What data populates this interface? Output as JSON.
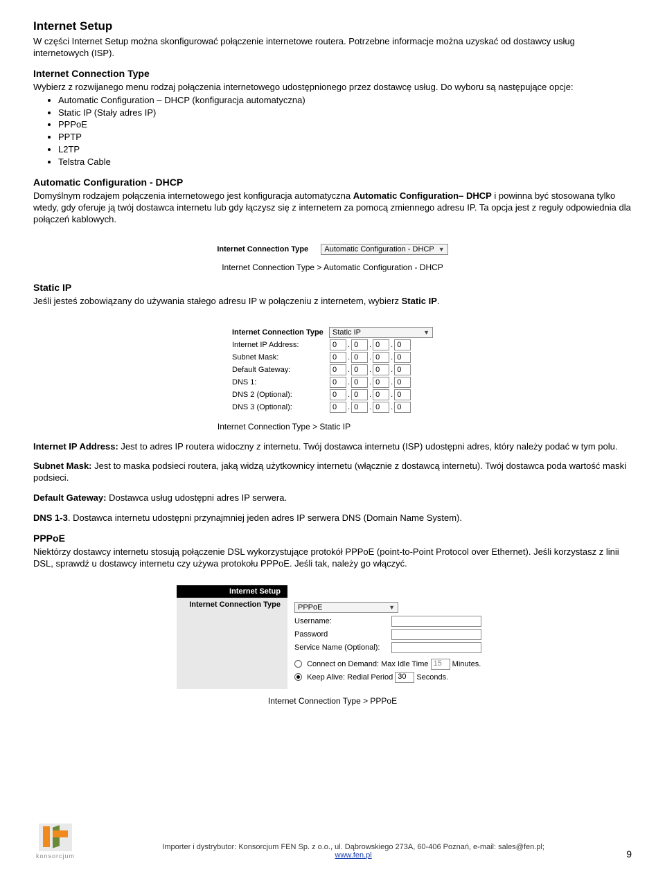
{
  "title": "Internet Setup",
  "intro": "W części Internet Setup można skonfigurować połączenie internetowe routera. Potrzebne informacje można uzyskać od dostawcy usług internetowych (ISP).",
  "ict_heading": "Internet Connection Type",
  "ict_intro": "Wybierz z rozwijanego menu rodzaj połączenia internetowego udostępnionego przez dostawcę usług. Do wyboru są następujące opcje:",
  "options": [
    "Automatic Configuration – DHCP (konfiguracja automatyczna)",
    "Static IP (Stały adres IP)",
    "PPPoE",
    "PPTP",
    "L2TP",
    "Telstra Cable"
  ],
  "auto_heading": "Automatic Configuration - DHCP",
  "auto_body_a": "Domyślnym rodzajem połączenia internetowego jest konfiguracja automatyczna ",
  "auto_body_b": "Automatic Configuration– DHCP",
  "auto_body_c": " i powinna być stosowana tylko wtedy, gdy oferuje ją twój dostawca internetu lub gdy łączysz się z internetem za pomocą zmiennego adresu IP. Ta opcja jest z reguły odpowiednia dla połączeń kablowych.",
  "fig1": {
    "row_label": "Internet Connection Type",
    "select_value": "Automatic Configuration - DHCP",
    "caption": "Internet Connection Type > Automatic Configuration - DHCP"
  },
  "static_heading": "Static IP",
  "static_body_a": "Jeśli jesteś zobowiązany do używania stałego adresu IP w połączeniu z internetem, wybierz ",
  "static_body_b": "Static IP",
  "static_body_c": ".",
  "fig2": {
    "row_label": "Internet Connection Type",
    "select_value": "Static IP",
    "fields": [
      "Internet IP Address:",
      "Subnet Mask:",
      "Default Gateway:",
      "DNS 1:",
      "DNS 2 (Optional):",
      "DNS 3 (Optional):"
    ],
    "octet": "0",
    "caption": "Internet Connection Type > Static IP"
  },
  "ipaddr_label": "Internet IP Address:",
  "ipaddr_text": " Jest to adres IP routera widoczny z internetu. Twój dostawca internetu (ISP) udostępni adres, który należy podać w tym polu.",
  "subnet_label": "Subnet Mask:",
  "subnet_text": " Jest to maska podsieci routera, jaką widzą użytkownicy internetu (włącznie z dostawcą internetu). Twój dostawca poda wartość maski podsieci.",
  "gateway_label": "Default Gateway:",
  "gateway_text": " Dostawca usług udostępni adres IP serwera.",
  "dns_label": "DNS 1-3",
  "dns_text": ". Dostawca internetu udostępni przynajmniej jeden adres IP serwera DNS (Domain Name System).",
  "pppoe_heading": "PPPoE",
  "pppoe_body": "Niektórzy dostawcy internetu stosują połączenie DSL wykorzystujące protokół PPPoE (point-to-Point Protocol over Ethernet). Jeśli korzystasz z linii DSL, sprawdź u dostawcy internetu czy używa protokołu PPPoE. Jeśli tak, należy go włączyć.",
  "fig3": {
    "panel_title": "Internet Setup",
    "side_label": "Internet Connection Type",
    "select_value": "PPPoE",
    "username_label": "Username:",
    "password_label": "Password",
    "service_label": "Service Name (Optional):",
    "cod_label": "Connect on Demand: Max Idle Time",
    "cod_value": "15",
    "cod_unit": "Minutes.",
    "ka_label": "Keep Alive: Redial Period",
    "ka_value": "30",
    "ka_unit": "Seconds.",
    "caption": "Internet Connection Type > PPPoE"
  },
  "footer": {
    "text_a": "Importer i dystrybutor: Konsorcjum FEN Sp. z o.o., ul. Dąbrowskiego 273A, 60-406 Poznań, e-mail: sales@fen.pl;",
    "link": "www.fen.pl",
    "logo_text": "konsorcjum",
    "page_number": "9"
  }
}
